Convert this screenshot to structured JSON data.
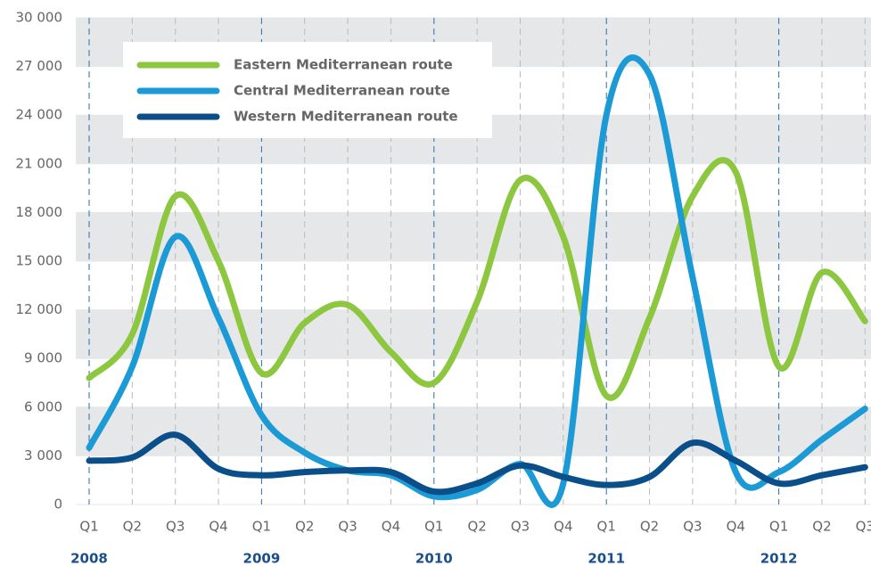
{
  "chart_data": {
    "type": "line",
    "categories": [
      "Q1",
      "Q2",
      "Q3",
      "Q4",
      "Q1",
      "Q2",
      "Q3",
      "Q4",
      "Q1",
      "Q2",
      "Q3",
      "Q4",
      "Q1",
      "Q2",
      "Q3",
      "Q4",
      "Q1",
      "Q2",
      "Q3"
    ],
    "years": [
      "2008",
      "2009",
      "2010",
      "2011",
      "2012"
    ],
    "series": [
      {
        "name": "Eastern Mediterranean route",
        "color": "#8dc63f",
        "values": [
          7800,
          10500,
          19000,
          15000,
          8100,
          11200,
          12300,
          9400,
          7500,
          12500,
          20000,
          16500,
          6700,
          11500,
          19000,
          20500,
          8500,
          14300,
          11300
        ]
      },
      {
        "name": "Central Mediterranean route",
        "color": "#1b9ad6",
        "values": [
          3500,
          8500,
          16500,
          11500,
          5500,
          3200,
          2100,
          1800,
          500,
          900,
          2500,
          1300,
          24000,
          26500,
          14000,
          2000,
          2000,
          4000,
          5900
        ]
      },
      {
        "name": "Western Mediterranean route",
        "color": "#0b4f8a",
        "values": [
          2700,
          2900,
          4300,
          2200,
          1800,
          2000,
          2100,
          2000,
          800,
          1300,
          2400,
          1700,
          1200,
          1700,
          3800,
          2700,
          1300,
          1800,
          2300
        ]
      }
    ],
    "ylim": [
      0,
      30000
    ],
    "yticks": [
      0,
      {
        "value": 3000,
        "label": "3 000"
      },
      {
        "value": 6000,
        "label": "6 000"
      },
      {
        "value": 9000,
        "label": "9 000"
      },
      {
        "value": 12000,
        "label": "12 000"
      },
      {
        "value": 15000,
        "label": "15 000"
      },
      {
        "value": 18000,
        "label": "18 000"
      },
      {
        "value": 21000,
        "label": "21 000"
      },
      {
        "value": 24000,
        "label": "24 000"
      },
      {
        "value": 27000,
        "label": "27 000"
      },
      {
        "value": 30000,
        "label": "30 000"
      }
    ],
    "grid": true
  }
}
